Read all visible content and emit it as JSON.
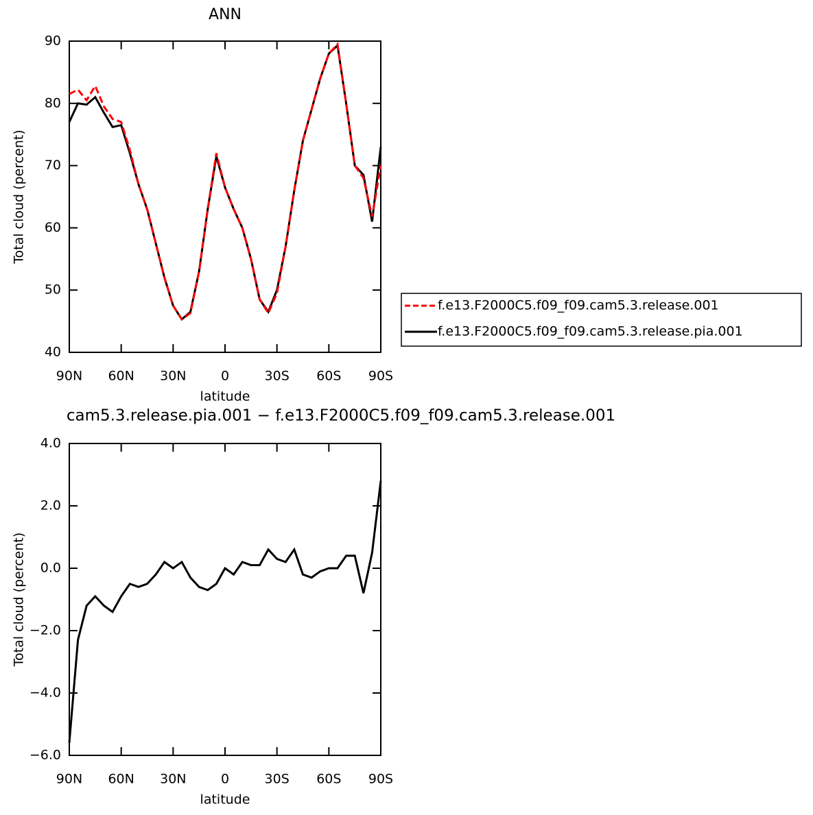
{
  "chart_data": [
    {
      "type": "line",
      "title": "ANN",
      "ylabel": "Total cloud (percent)",
      "xlabel": "latitude",
      "x": [
        90,
        85,
        80,
        75,
        70,
        65,
        60,
        55,
        50,
        45,
        40,
        35,
        30,
        25,
        20,
        15,
        10,
        5,
        0,
        -5,
        -10,
        -15,
        -20,
        -25,
        -30,
        -35,
        -40,
        -45,
        -50,
        -55,
        -60,
        -65,
        -70,
        -75,
        -80,
        -85,
        -90
      ],
      "series": [
        {
          "name": "f.e13.F2000C5.f09_f09.cam5.3.release.001",
          "color": "#ff0000",
          "style": "dashed",
          "values": [
            81.5,
            82.2,
            80.5,
            82.8,
            79.5,
            77.5,
            77,
            72.5,
            67,
            63,
            57.5,
            52,
            47.5,
            45.3,
            46.3,
            53,
            63,
            72,
            66.5,
            63,
            60,
            55,
            48.5,
            46.3,
            49.5,
            57,
            66,
            74,
            79,
            84,
            88,
            89.5,
            80,
            70,
            68,
            61.8,
            70
          ]
        },
        {
          "name": "f.e13.F2000C5.f09_f09.cam5.3.release.pia.001",
          "color": "#000000",
          "style": "solid",
          "values": [
            77,
            80,
            79.8,
            81,
            78.5,
            76.2,
            76.5,
            72,
            67,
            63,
            57.5,
            52,
            47.5,
            45.3,
            46.5,
            53,
            63,
            71.5,
            66.5,
            63,
            60,
            55,
            48.5,
            46.5,
            50,
            57,
            66,
            74,
            79,
            84,
            88,
            89.3,
            80,
            70,
            68.5,
            61,
            73
          ]
        }
      ],
      "xlim": [
        90,
        -90
      ],
      "xticks": [
        {
          "value": 90,
          "label": "90N"
        },
        {
          "value": 60,
          "label": "60N"
        },
        {
          "value": 30,
          "label": "30N"
        },
        0,
        {
          "value": -30,
          "label": "30S"
        },
        {
          "value": -60,
          "label": "60S"
        },
        {
          "value": -90,
          "label": "90S"
        }
      ],
      "ylim": [
        40,
        90
      ],
      "yticks": [
        40,
        50,
        60,
        70,
        80,
        90
      ],
      "legend": "right"
    },
    {
      "type": "line",
      "title": "cam5.3.release.pia.001 − f.e13.F2000C5.f09_f09.cam5.3.release.001",
      "ylabel": "Total cloud (percent)",
      "xlabel": "latitude",
      "x": [
        90,
        85,
        80,
        75,
        70,
        65,
        60,
        55,
        50,
        45,
        40,
        35,
        30,
        25,
        20,
        15,
        10,
        5,
        0,
        -5,
        -10,
        -15,
        -20,
        -25,
        -30,
        -35,
        -40,
        -45,
        -50,
        -55,
        -60,
        -65,
        -70,
        -75,
        -80,
        -85,
        -90
      ],
      "values": [
        -5.6,
        -2.3,
        -1.2,
        -0.9,
        -1.2,
        -1.4,
        -0.9,
        -0.5,
        -0.6,
        -0.5,
        -0.2,
        0.2,
        0.0,
        0.2,
        -0.3,
        -0.6,
        -0.7,
        -0.5,
        0.0,
        -0.2,
        0.2,
        0.1,
        0.1,
        0.6,
        0.3,
        0.2,
        0.6,
        -0.2,
        -0.3,
        -0.1,
        0.0,
        0.0,
        0.4,
        0.4,
        -0.8,
        0.5,
        2.8
      ],
      "color": "#000000",
      "xlim": [
        90,
        -90
      ],
      "xticks": [
        {
          "value": 90,
          "label": "90N"
        },
        {
          "value": 60,
          "label": "60N"
        },
        {
          "value": 30,
          "label": "30N"
        },
        0,
        {
          "value": -30,
          "label": "30S"
        },
        {
          "value": -60,
          "label": "60S"
        },
        {
          "value": -90,
          "label": "90S"
        }
      ],
      "ylim": [
        -6,
        4
      ],
      "yticks": [
        {
          "value": -6,
          "label": "−6.0"
        },
        {
          "value": -4,
          "label": "−4.0"
        },
        {
          "value": -2,
          "label": "−2.0"
        },
        {
          "value": 0,
          "label": "0.0"
        },
        {
          "value": 2,
          "label": "2.0"
        },
        {
          "value": 4,
          "label": "4.0"
        }
      ]
    }
  ]
}
